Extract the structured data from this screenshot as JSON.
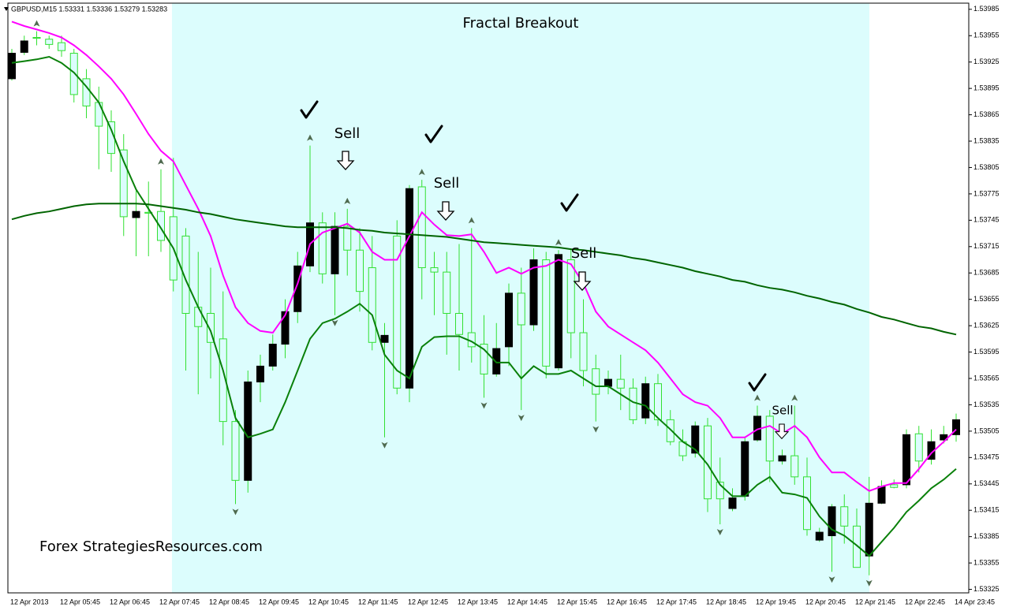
{
  "header": "GBPUSD,M15  1.53331 1.53336 1.53279 1.53283",
  "chart_data": {
    "type": "candlestick",
    "title": "Fractal Breakout",
    "watermark": "Forex StrategiesResources.com",
    "annotations": [
      "Sell",
      "Sell",
      "Sell",
      "Sell"
    ],
    "categories": [
      "12 Apr 2013",
      null,
      null,
      null,
      "12 Apr 05:45",
      null,
      null,
      null,
      "12 Apr 06:45",
      null,
      null,
      null,
      "12 Apr 07:45",
      null,
      null,
      null,
      "12 Apr 08:45",
      null,
      null,
      null,
      "12 Apr 09:45",
      null,
      null,
      null,
      "12 Apr 10:45",
      null,
      null,
      null,
      "12 Apr 11:45",
      null,
      null,
      null,
      "12 Apr 12:45",
      null,
      null,
      null,
      "12 Apr 13:45",
      null,
      null,
      null,
      "12 Apr 14:45",
      null,
      null,
      null,
      "12 Apr 15:45",
      null,
      null,
      null,
      "12 Apr 16:45",
      null,
      null,
      null,
      "12 Apr 17:45",
      null,
      null,
      null,
      "12 Apr 18:45",
      null,
      null,
      null,
      "12 Apr 19:45",
      null,
      null,
      null,
      "12 Apr 20:45",
      null,
      null,
      null,
      "12 Apr 21:45",
      null,
      null,
      null,
      "12 Apr 22:45",
      null,
      null,
      null,
      "14 Apr 23:45"
    ],
    "open": [
      1.53906,
      1.53936,
      1.53953,
      1.53951,
      1.53947,
      1.53935,
      1.53906,
      1.53879,
      1.53857,
      1.53825,
      1.53748,
      1.53754,
      1.53755,
      1.53749,
      1.53727,
      1.53646,
      1.53639,
      1.5361,
      1.53516,
      1.53449,
      1.53561,
      1.53579,
      1.53604,
      1.53641,
      1.53693,
      1.53742,
      1.53684,
      1.53738,
      1.53711,
      1.53691,
      1.53606,
      1.53727,
      1.53554,
      1.53783,
      1.53691,
      1.53686,
      1.53639,
      1.53617,
      1.53604,
      1.5357,
      1.53601,
      1.53662,
      1.53626,
      1.537,
      1.53577,
      1.537,
      1.53617,
      1.53576,
      1.53556,
      1.53564,
      1.53554,
      1.5352,
      1.53559,
      1.53518,
      1.53493,
      1.5348,
      1.53511,
      1.53447,
      1.53417,
      1.53431,
      1.53495,
      1.53522,
      1.53471,
      1.53477,
      1.53453,
      1.53381,
      1.53386,
      1.53419,
      1.53397,
      1.53363,
      1.53423,
      1.53444,
      1.53444,
      1.53502,
      1.53473,
      1.53495,
      1.53501
    ],
    "high": [
      1.5394,
      1.53955,
      1.5396,
      1.53955,
      1.53955,
      1.5394,
      1.53917,
      1.53897,
      1.5387,
      1.53843,
      1.5378,
      1.53789,
      1.53803,
      1.53816,
      1.53736,
      1.53709,
      1.53691,
      1.53664,
      1.53529,
      1.53574,
      1.53592,
      1.53615,
      1.53655,
      1.53709,
      1.5383,
      1.53754,
      1.53754,
      1.53758,
      1.53736,
      1.53727,
      1.53628,
      1.53745,
      1.53785,
      1.53791,
      1.53709,
      1.53709,
      1.53718,
      1.53736,
      1.53637,
      1.53628,
      1.53673,
      1.53691,
      1.53713,
      1.53709,
      1.53711,
      1.53713,
      1.53655,
      1.53592,
      1.53574,
      1.53592,
      1.53565,
      1.53567,
      1.5357,
      1.53529,
      1.53507,
      1.53516,
      1.5352,
      1.53475,
      1.5344,
      1.53498,
      1.53534,
      1.53529,
      1.53484,
      1.53534,
      1.53475,
      1.53395,
      1.53422,
      1.53433,
      1.53417,
      1.53453,
      1.53449,
      1.5345,
      1.53507,
      1.53511,
      1.53507,
      1.53511,
      1.53525
    ],
    "low": [
      1.53904,
      1.53933,
      1.53944,
      1.5394,
      1.53931,
      1.53879,
      1.53861,
      1.53803,
      1.538,
      1.53727,
      1.53704,
      1.53704,
      1.53709,
      1.53664,
      1.53574,
      1.53547,
      1.53565,
      1.53489,
      1.53422,
      1.53435,
      1.53538,
      1.53574,
      1.53588,
      1.53628,
      1.53686,
      1.53673,
      1.53637,
      1.53682,
      1.53641,
      1.53597,
      1.53498,
      1.53547,
      1.53538,
      1.53655,
      1.53637,
      1.53592,
      1.53574,
      1.53583,
      1.53543,
      1.53567,
      1.53579,
      1.53529,
      1.53619,
      1.53565,
      1.53574,
      1.53588,
      1.53556,
      1.53516,
      1.53547,
      1.53529,
      1.53513,
      1.53513,
      1.53511,
      1.53489,
      1.53471,
      1.53475,
      1.53413,
      1.53399,
      1.53414,
      1.53426,
      1.53493,
      1.53447,
      1.53467,
      1.53444,
      1.53386,
      1.53379,
      1.53345,
      1.53377,
      1.5335,
      1.53341,
      1.53422,
      1.5344,
      1.5344,
      1.53458,
      1.53467,
      1.53491,
      1.53493
    ],
    "close": [
      1.53935,
      1.53949,
      1.53952,
      1.53945,
      1.53938,
      1.53888,
      1.53875,
      1.53852,
      1.53821,
      1.53749,
      1.53755,
      1.53753,
      1.53722,
      1.53677,
      1.53639,
      1.53624,
      1.53606,
      1.53516,
      1.53449,
      1.53561,
      1.53579,
      1.53604,
      1.53641,
      1.53693,
      1.53742,
      1.53684,
      1.53738,
      1.53711,
      1.53664,
      1.53606,
      1.53614,
      1.53554,
      1.53781,
      1.53691,
      1.53686,
      1.53639,
      1.53615,
      1.53601,
      1.5357,
      1.53599,
      1.53662,
      1.53626,
      1.537,
      1.53579,
      1.53706,
      1.53617,
      1.53574,
      1.53547,
      1.53564,
      1.53554,
      1.53518,
      1.53559,
      1.53518,
      1.53493,
      1.53477,
      1.53511,
      1.53428,
      1.53428,
      1.53429,
      1.53493,
      1.53522,
      1.53471,
      1.53477,
      1.53453,
      1.53393,
      1.5339,
      1.53419,
      1.53397,
      1.5335,
      1.53423,
      1.53442,
      1.53441,
      1.53501,
      1.53471,
      1.53493,
      1.53501,
      1.53518
    ],
    "bull_color": "#000000",
    "bear_color": "#32e032",
    "wick_color": "#32e032",
    "series": [
      {
        "color": "#ff00ff",
        "values": [
          1.53971,
          1.53966,
          1.53962,
          1.53958,
          1.53953,
          1.53944,
          1.53933,
          1.5392,
          1.53906,
          1.53888,
          1.53866,
          1.53843,
          1.53824,
          1.53812,
          1.53785,
          1.53758,
          1.53727,
          1.53682,
          1.53646,
          1.53628,
          1.53619,
          1.53617,
          1.53637,
          1.53673,
          1.53718,
          1.53731,
          1.53736,
          1.53741,
          1.53731,
          1.53709,
          1.537,
          1.537,
          1.53727,
          1.53754,
          1.5374,
          1.53728,
          1.53727,
          1.53729,
          1.53709,
          1.53685,
          1.53691,
          1.53684,
          1.53691,
          1.53693,
          1.537,
          1.53695,
          1.53673,
          1.53641,
          1.53624,
          1.53615,
          1.53606,
          1.53597,
          1.53583,
          1.53565,
          1.53547,
          1.53538,
          1.53534,
          1.5352,
          1.53498,
          1.53498,
          1.53507,
          1.53511,
          1.53502,
          1.53511,
          1.53498,
          1.53475,
          1.53458,
          1.53458,
          1.53447,
          1.53437,
          1.53442,
          1.53446,
          1.53446,
          1.53462,
          1.5348,
          1.53493,
          1.53507
        ]
      },
      {
        "color": "#0a800a",
        "values": [
          1.53924,
          1.53926,
          1.53928,
          1.53931,
          1.53924,
          1.53913,
          1.53897,
          1.53879,
          1.53848,
          1.53812,
          1.5378,
          1.53758,
          1.53736,
          1.53713,
          1.53677,
          1.53646,
          1.53619,
          1.53574,
          1.5352,
          1.53498,
          1.53502,
          1.53507,
          1.53538,
          1.53574,
          1.5361,
          1.53628,
          1.53633,
          1.53641,
          1.5365,
          1.53637,
          1.53592,
          1.53574,
          1.53565,
          1.53601,
          1.53612,
          1.53613,
          1.53613,
          1.53607,
          1.53598,
          1.53583,
          1.53583,
          1.53565,
          1.53579,
          1.5357,
          1.5357,
          1.53574,
          1.53565,
          1.53556,
          1.53556,
          1.53547,
          1.53538,
          1.53534,
          1.5352,
          1.53507,
          1.53493,
          1.53484,
          1.53467,
          1.53444,
          1.53431,
          1.53431,
          1.53444,
          1.53453,
          1.53435,
          1.53433,
          1.53429,
          1.53408,
          1.53393,
          1.53386,
          1.53375,
          1.53363,
          1.53379,
          1.53395,
          1.53413,
          1.53426,
          1.5344,
          1.5345,
          1.53462
        ]
      },
      {
        "color": "#006400",
        "values": [
          1.53746,
          1.5375,
          1.53753,
          1.53755,
          1.53758,
          1.53761,
          1.53763,
          1.53764,
          1.53764,
          1.53764,
          1.53764,
          1.53763,
          1.53761,
          1.53759,
          1.53757,
          1.53754,
          1.53752,
          1.53749,
          1.53746,
          1.53744,
          1.53742,
          1.5374,
          1.53738,
          1.53737,
          1.53737,
          1.53737,
          1.53737,
          1.53736,
          1.53734,
          1.53733,
          1.53731,
          1.5373,
          1.53729,
          1.53728,
          1.53727,
          1.53726,
          1.53724,
          1.53722,
          1.5372,
          1.53719,
          1.53718,
          1.53717,
          1.53716,
          1.53715,
          1.53714,
          1.53712,
          1.53711,
          1.53709,
          1.53707,
          1.53705,
          1.53702,
          1.537,
          1.53697,
          1.53694,
          1.53691,
          1.53687,
          1.53684,
          1.53681,
          1.53677,
          1.53675,
          1.53671,
          1.53668,
          1.53666,
          1.53663,
          1.53659,
          1.53656,
          1.53652,
          1.53649,
          1.53644,
          1.5364,
          1.53635,
          1.53632,
          1.53628,
          1.53624,
          1.53622,
          1.53618,
          1.53615
        ]
      }
    ],
    "fractal_color": "#4f6a4f",
    "fractal_up": [
      null,
      null,
      1.5396,
      null,
      null,
      null,
      null,
      null,
      null,
      null,
      null,
      null,
      1.53803,
      null,
      null,
      null,
      null,
      null,
      null,
      null,
      null,
      null,
      null,
      null,
      1.5383,
      null,
      null,
      1.53758,
      null,
      null,
      null,
      null,
      null,
      1.53791,
      null,
      null,
      null,
      1.53736,
      null,
      null,
      null,
      null,
      null,
      null,
      1.53711,
      null,
      null,
      null,
      null,
      null,
      null,
      null,
      null,
      null,
      null,
      null,
      null,
      null,
      null,
      null,
      1.53534,
      null,
      null,
      1.53534,
      null,
      null,
      null,
      null,
      null,
      null,
      null,
      null,
      null,
      null,
      null,
      null,
      null
    ],
    "fractal_down": [
      null,
      null,
      null,
      null,
      null,
      null,
      null,
      null,
      null,
      null,
      null,
      null,
      null,
      null,
      null,
      null,
      null,
      null,
      1.53422,
      null,
      null,
      null,
      null,
      null,
      null,
      null,
      1.53637,
      null,
      null,
      null,
      1.53498,
      null,
      null,
      null,
      null,
      null,
      null,
      null,
      1.53543,
      null,
      null,
      1.53529,
      null,
      null,
      null,
      null,
      null,
      1.53516,
      null,
      null,
      null,
      null,
      null,
      null,
      null,
      null,
      null,
      1.53399,
      null,
      null,
      null,
      null,
      null,
      null,
      null,
      null,
      1.53345,
      null,
      null,
      1.53341,
      null,
      null,
      null,
      null,
      null,
      null,
      null
    ],
    "ylim": [
      1.53321,
      1.53992
    ],
    "yticks": [
      1.53985,
      1.53955,
      1.53925,
      1.53895,
      1.53865,
      1.53835,
      1.53805,
      1.53775,
      1.53745,
      1.53715,
      1.53685,
      1.53655,
      1.53625,
      1.53595,
      1.53565,
      1.53535,
      1.53505,
      1.53475,
      1.53445,
      1.53415,
      1.53385,
      1.53355,
      1.53325
    ]
  }
}
